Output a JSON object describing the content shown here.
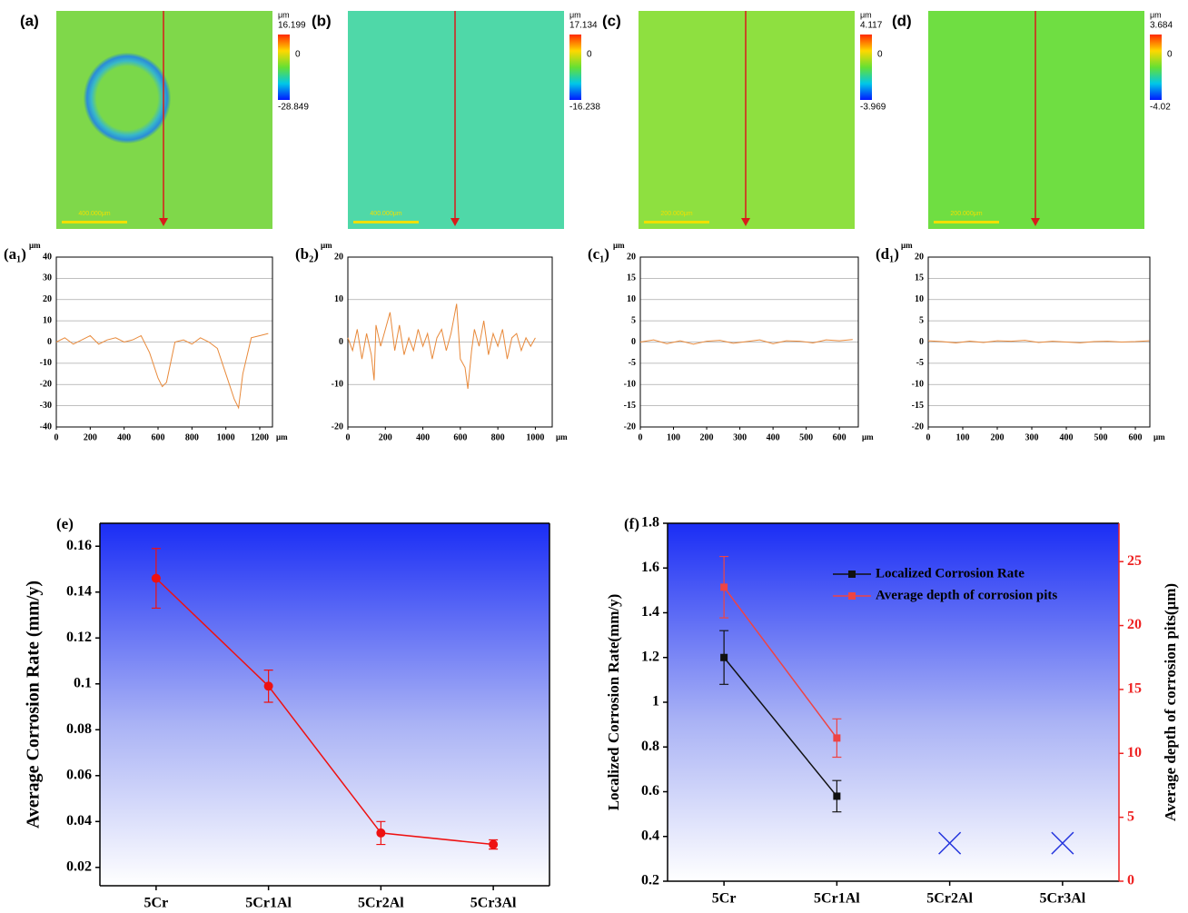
{
  "maps": [
    {
      "label": "(a)",
      "unit": "μm",
      "max": "16.199",
      "zero": "0",
      "min": "-28.849",
      "scale_bar": "400.000μm"
    },
    {
      "label": "(b)",
      "unit": "μm",
      "max": "17.134",
      "zero": "0",
      "min": "-16.238",
      "scale_bar": "400.000μm"
    },
    {
      "label": "(c)",
      "unit": "μm",
      "max": "4.117",
      "zero": "0",
      "min": "-3.969",
      "scale_bar": "200.000μm"
    },
    {
      "label": "(d)",
      "unit": "μm",
      "max": "3.684",
      "zero": "0",
      "min": "-4.02",
      "scale_bar": "200.000μm"
    }
  ],
  "chart_data": [
    {
      "type": "line",
      "title": "(a₁)",
      "ylabel": "μm",
      "xlabel": "μm",
      "color": "#e8893a",
      "grid": true,
      "x": [
        0,
        50,
        100,
        150,
        200,
        250,
        300,
        350,
        400,
        450,
        500,
        550,
        600,
        625,
        650,
        700,
        750,
        800,
        850,
        900,
        950,
        1000,
        1050,
        1075,
        1100,
        1150,
        1200,
        1250
      ],
      "values": [
        0,
        2,
        -1,
        1,
        3,
        -1,
        1,
        2,
        0,
        1,
        3,
        -5,
        -17,
        -21,
        -19,
        0,
        1,
        -1,
        2,
        0,
        -3,
        -15,
        -27,
        -31,
        -15,
        2,
        3,
        4
      ],
      "xlim": [
        0,
        1275
      ],
      "xticks": [
        0,
        200,
        400,
        600,
        800,
        1000,
        1200
      ],
      "ylim": [
        -40,
        40
      ],
      "yticks": [
        -40,
        -30,
        -20,
        -10,
        0,
        10,
        20,
        30,
        40
      ]
    },
    {
      "type": "line",
      "title": "(b₂)",
      "ylabel": "μm",
      "xlabel": "μm",
      "color": "#e8893a",
      "grid": true,
      "x": [
        0,
        25,
        50,
        75,
        100,
        125,
        140,
        150,
        175,
        200,
        225,
        250,
        275,
        300,
        325,
        350,
        375,
        400,
        425,
        450,
        475,
        500,
        525,
        550,
        580,
        600,
        625,
        640,
        660,
        675,
        700,
        725,
        750,
        775,
        800,
        825,
        850,
        875,
        900,
        925,
        950,
        975,
        1000
      ],
      "values": [
        1,
        -2,
        3,
        -4,
        2,
        -3,
        -9,
        4,
        -1,
        3,
        7,
        -2,
        4,
        -3,
        1,
        -2,
        3,
        -1,
        2,
        -4,
        1,
        3,
        -2,
        2,
        9,
        -4,
        -6,
        -11,
        -2,
        3,
        -1,
        5,
        -3,
        2,
        -1,
        3,
        -4,
        1,
        2,
        -2,
        1,
        -1,
        1
      ],
      "xlim": [
        0,
        1090
      ],
      "xticks": [
        0,
        200,
        400,
        600,
        800,
        1000
      ],
      "ylim": [
        -20,
        20
      ],
      "yticks": [
        -20,
        -10,
        0,
        10,
        20
      ]
    },
    {
      "type": "line",
      "title": "(c₁)",
      "ylabel": "μm",
      "xlabel": "μm",
      "color": "#e8893a",
      "grid": true,
      "x": [
        0,
        40,
        80,
        120,
        160,
        200,
        240,
        280,
        320,
        360,
        400,
        440,
        480,
        520,
        560,
        600,
        640
      ],
      "values": [
        0,
        0.5,
        -0.4,
        0.3,
        -0.5,
        0.2,
        0.4,
        -0.3,
        0.1,
        0.5,
        -0.4,
        0.3,
        0.2,
        -0.2,
        0.5,
        0.3,
        0.6
      ],
      "xlim": [
        0,
        657
      ],
      "xticks": [
        0,
        100,
        200,
        300,
        400,
        500,
        600
      ],
      "ylim": [
        -20,
        20
      ],
      "yticks": [
        -20,
        -15,
        -10,
        -5,
        0,
        5,
        10,
        15,
        20
      ]
    },
    {
      "type": "line",
      "title": "(d₁)",
      "ylabel": "μm",
      "xlabel": "μm",
      "color": "#e8893a",
      "grid": true,
      "x": [
        0,
        40,
        80,
        120,
        160,
        200,
        240,
        280,
        320,
        360,
        400,
        440,
        480,
        520,
        560,
        600,
        640
      ],
      "values": [
        0.3,
        0.1,
        -0.2,
        0.2,
        -0.1,
        0.3,
        0.2,
        0.4,
        -0.1,
        0.2,
        0,
        -0.2,
        0.1,
        0.2,
        0,
        0.1,
        0.3
      ],
      "xlim": [
        0,
        642
      ],
      "xticks": [
        0,
        100,
        200,
        300,
        400,
        500,
        600
      ],
      "ylim": [
        -20,
        20
      ],
      "yticks": [
        -20,
        -15,
        -10,
        -5,
        0,
        5,
        10,
        15,
        20
      ]
    },
    {
      "type": "errorline",
      "title": "(e)",
      "ylabel": "Average Corrosion Rate (mm/y)",
      "categories": [
        "5Cr",
        "5Cr1Al",
        "5Cr2Al",
        "5Cr3Al"
      ],
      "series": [
        {
          "name": null,
          "color": "#ee1111",
          "marker": "circle",
          "values": [
            0.146,
            0.099,
            0.035,
            0.03
          ],
          "errors": [
            0.013,
            0.007,
            0.005,
            0.002
          ]
        }
      ],
      "ylim": [
        0.012,
        0.17
      ],
      "yticks": [
        0.02,
        0.04,
        0.06,
        0.08,
        0.1,
        0.12,
        0.14,
        0.16
      ]
    },
    {
      "type": "errorline",
      "title": "(f)",
      "ylabel": "Localized Corrosion Rate(mm/y)",
      "y2label": "Average depth of corrosion pits(μm)",
      "categories": [
        "5Cr",
        "5Cr1Al",
        "5Cr2Al",
        "5Cr3Al"
      ],
      "series": [
        {
          "name": "Localized Corrosion Rate",
          "color": "#111111",
          "marker": "square",
          "values": [
            1.2,
            0.58,
            null,
            null
          ],
          "errors": [
            0.12,
            0.07,
            null,
            null
          ]
        },
        {
          "name": "Average depth of corrosion pits",
          "color": "#ee4444",
          "marker": "square",
          "axis": "y2",
          "values": [
            23,
            11.2,
            null,
            null
          ],
          "errors": [
            2.4,
            1.5,
            null,
            null
          ]
        }
      ],
      "x_markers": {
        "color": "#2233dd",
        "values": [
          null,
          null,
          0.37,
          0.37
        ]
      },
      "ylim": [
        0.2,
        1.8
      ],
      "yticks": [
        0.2,
        0.4,
        0.6,
        0.8,
        1.0,
        1.2,
        1.4,
        1.6,
        1.8
      ],
      "y2lim": [
        0,
        28
      ],
      "y2ticks": [
        0,
        5,
        10,
        15,
        20,
        25
      ],
      "y2color": "#ee2222"
    }
  ]
}
